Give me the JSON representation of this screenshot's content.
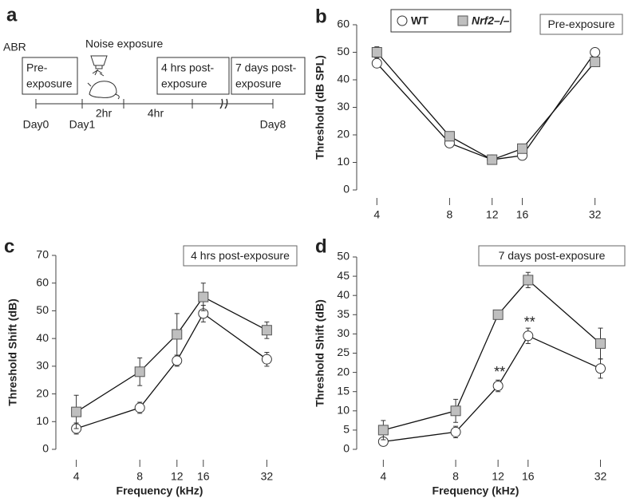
{
  "timeline": {
    "label": "a",
    "abr": "ABR",
    "noise": "Noise exposure",
    "boxes": [
      [
        "Pre-",
        "exposure"
      ],
      [
        "4 hrs post-",
        "exposure"
      ],
      [
        "7 days post-",
        "exposure"
      ]
    ],
    "days": [
      "Day0",
      "Day1",
      "Day8"
    ],
    "durations": [
      "2hr",
      "4hr"
    ]
  },
  "chart_data": [
    {
      "type": "line",
      "label": "b",
      "annotation_box": "Pre-exposure",
      "ylabel": "Threshold (dB SPL)",
      "x": [
        4,
        8,
        12,
        16,
        32
      ],
      "xscale": "log",
      "xlim": [
        3.3,
        40
      ],
      "xticks": [
        4,
        8,
        12,
        16,
        32
      ],
      "ylim": [
        0,
        60
      ],
      "yticks": [
        0,
        10,
        20,
        30,
        40,
        50,
        60
      ],
      "legend": true,
      "series": [
        {
          "name": "WT",
          "color": "#ffffff",
          "marker": "circle",
          "values": [
            46,
            17,
            11,
            12.5,
            50
          ],
          "errors": [
            1.5,
            1,
            1,
            1,
            1.5
          ]
        },
        {
          "name": "Nrf2–/–",
          "color": "#bfbfbf",
          "marker": "square",
          "values": [
            50,
            19.5,
            11,
            15,
            46.5
          ],
          "errors": [
            2,
            1,
            1,
            1,
            1.5
          ]
        }
      ]
    },
    {
      "type": "line",
      "label": "c",
      "annotation_box": "4 hrs post-exposure",
      "ylabel": "Threshold Shift (dB)",
      "xlabel": "Frequency (kHz)",
      "x": [
        4,
        8,
        12,
        16,
        32
      ],
      "xscale": "log",
      "xlim": [
        3.2,
        40
      ],
      "xticks": [
        4,
        8,
        12,
        16,
        32
      ],
      "ylim": [
        0,
        70
      ],
      "yticks": [
        0,
        10,
        20,
        30,
        40,
        50,
        60,
        70
      ],
      "legend": false,
      "series": [
        {
          "name": "WT",
          "color": "#ffffff",
          "marker": "circle",
          "values": [
            7.5,
            15,
            32,
            49,
            32.5
          ],
          "errors": [
            2,
            2,
            2,
            3,
            2.5
          ]
        },
        {
          "name": "Nrf2–/–",
          "color": "#bfbfbf",
          "marker": "square",
          "values": [
            13.5,
            28,
            41.5,
            55,
            43
          ],
          "errors": [
            6,
            5,
            7.5,
            5,
            3
          ]
        }
      ]
    },
    {
      "type": "line",
      "label": "d",
      "annotation_box": "7 days post-exposure",
      "ylabel": "Threshold Shift (dB)",
      "xlabel": "Frequency (kHz)",
      "x": [
        4,
        8,
        12,
        16,
        32
      ],
      "xscale": "log",
      "xlim": [
        3.1,
        38
      ],
      "xticks": [
        4,
        8,
        12,
        16,
        32
      ],
      "ylim": [
        0,
        50
      ],
      "yticks": [
        0,
        5,
        10,
        15,
        20,
        25,
        30,
        35,
        40,
        45,
        50
      ],
      "legend": false,
      "annotations": [
        {
          "text": "**",
          "x": 12
        },
        {
          "text": "**",
          "x": 16
        }
      ],
      "series": [
        {
          "name": "WT",
          "color": "#ffffff",
          "marker": "circle",
          "values": [
            2,
            4.5,
            16.5,
            29.5,
            21
          ],
          "errors": [
            0.5,
            1.5,
            1.5,
            2,
            2.5
          ]
        },
        {
          "name": "Nrf2–/–",
          "color": "#bfbfbf",
          "marker": "square",
          "values": [
            5,
            10,
            35,
            44,
            27.5
          ],
          "errors": [
            2.5,
            3,
            1,
            2,
            4
          ]
        }
      ]
    }
  ]
}
